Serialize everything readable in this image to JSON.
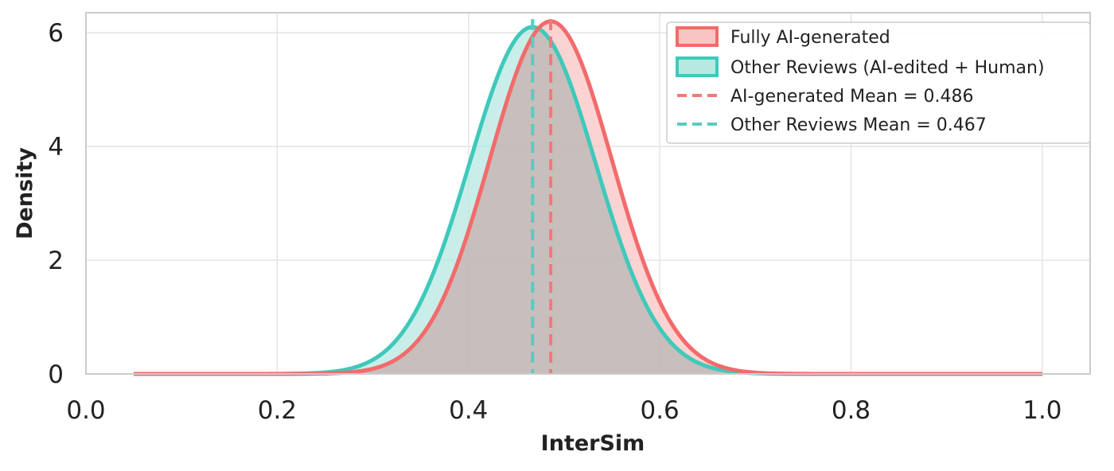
{
  "chart_data": {
    "type": "area",
    "xlabel": "InterSim",
    "ylabel": "Density",
    "xlim": [
      0.0,
      1.05
    ],
    "ylim": [
      0,
      6.35
    ],
    "x_ticks": [
      "0.0",
      "0.2",
      "0.4",
      "0.6",
      "0.8",
      "1.0"
    ],
    "y_ticks": [
      "0",
      "2",
      "4",
      "6"
    ],
    "grid": true,
    "legend_position": "top-right",
    "x_range": [
      0.05,
      1.0
    ],
    "series": [
      {
        "name": "Fully AI-generated",
        "kind": "density",
        "mean": 0.486,
        "sd": 0.064,
        "peak_density": 6.2,
        "color": "#f26b6b",
        "fill": "#f9c4c4"
      },
      {
        "name": "Other Reviews (AI-edited + Human)",
        "kind": "density",
        "mean": 0.467,
        "sd": 0.066,
        "peak_density": 6.1,
        "color": "#3fc9bb",
        "fill": "#b7e8e2"
      }
    ],
    "mean_lines": [
      {
        "name": "AI-generated Mean = 0.486",
        "x": 0.486,
        "color": "#ef7a7a"
      },
      {
        "name": "Other Reviews Mean = 0.467",
        "x": 0.467,
        "color": "#56cdc0"
      }
    ]
  }
}
